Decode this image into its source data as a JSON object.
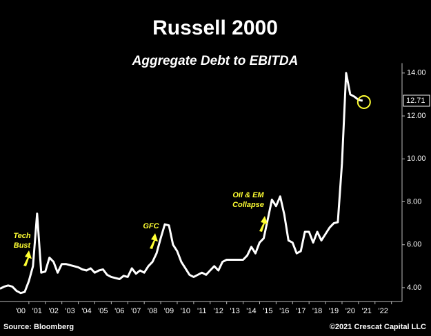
{
  "chart_data": {
    "type": "line",
    "title": "Russell 2000",
    "subtitle": "Aggregate Debt to EBITDA",
    "source": "Source: Bloomberg",
    "copyright": "©2021 Crescat Capital LLC",
    "categories": [
      null,
      null,
      null,
      null,
      null,
      "'00",
      null,
      null,
      null,
      "'01",
      null,
      null,
      null,
      "'02",
      null,
      null,
      null,
      "'03",
      null,
      null,
      null,
      "'04",
      null,
      null,
      null,
      "'05",
      null,
      null,
      null,
      "'06",
      null,
      null,
      null,
      "'07",
      null,
      null,
      null,
      "'08",
      null,
      null,
      null,
      "'09",
      null,
      null,
      null,
      "'10",
      null,
      null,
      null,
      "'11",
      null,
      null,
      null,
      "'12",
      null,
      null,
      null,
      "'13",
      null,
      null,
      null,
      "'14",
      null,
      null,
      null,
      "'15",
      null,
      null,
      null,
      "'16",
      null,
      null,
      null,
      "'17",
      null,
      null,
      null,
      "'18",
      null,
      null,
      null,
      "'19",
      null,
      null,
      null,
      "'20",
      null,
      null,
      null,
      "'21",
      null,
      null,
      null,
      "'22",
      null
    ],
    "series": [
      {
        "name": "Debt to EBITDA",
        "color": "#ffffff",
        "values": [
          3.95,
          4.05,
          4.1,
          4.05,
          3.85,
          3.75,
          3.8,
          4.3,
          5.0,
          7.45,
          4.7,
          4.75,
          5.4,
          5.2,
          4.7,
          5.1,
          5.1,
          5.05,
          5.0,
          4.95,
          4.85,
          4.8,
          4.9,
          4.7,
          4.8,
          4.85,
          4.6,
          4.5,
          4.45,
          4.4,
          4.55,
          4.5,
          4.9,
          4.65,
          4.8,
          4.7,
          5.0,
          5.2,
          5.6,
          6.3,
          6.95,
          6.9,
          6.0,
          5.7,
          5.2,
          4.9,
          4.6,
          4.5,
          4.6,
          4.7,
          4.6,
          4.8,
          5.0,
          4.8,
          5.2,
          5.3,
          5.3,
          5.3,
          5.3,
          5.3,
          5.5,
          5.9,
          5.6,
          6.1,
          6.3,
          7.2,
          8.1,
          7.8,
          8.25,
          7.4,
          6.2,
          6.1,
          5.6,
          5.7,
          6.6,
          6.6,
          6.1,
          6.6,
          6.2,
          6.5,
          6.8,
          7.0,
          7.05,
          9.8,
          14.0,
          13.0,
          12.9,
          12.75,
          12.71,
          null,
          null,
          null,
          null,
          null,
          null
        ]
      }
    ],
    "ylim": [
      3.4,
      14.3
    ],
    "yticks": [
      {
        "value": 4,
        "label": "4.00"
      },
      {
        "value": 6,
        "label": "6.00"
      },
      {
        "value": 8,
        "label": "8.00"
      },
      {
        "value": 10,
        "label": "10.00"
      },
      {
        "value": 12,
        "label": "12.00"
      },
      {
        "value": 14,
        "label": "14.00"
      }
    ],
    "annotations": [
      {
        "lines": [
          "Tech",
          "Bust"
        ],
        "color": "#ffff33"
      },
      {
        "lines": [
          "GFC"
        ],
        "color": "#ffff33"
      },
      {
        "lines": [
          "Oil & EM",
          "Collapse"
        ],
        "color": "#ffff33"
      }
    ]
  }
}
